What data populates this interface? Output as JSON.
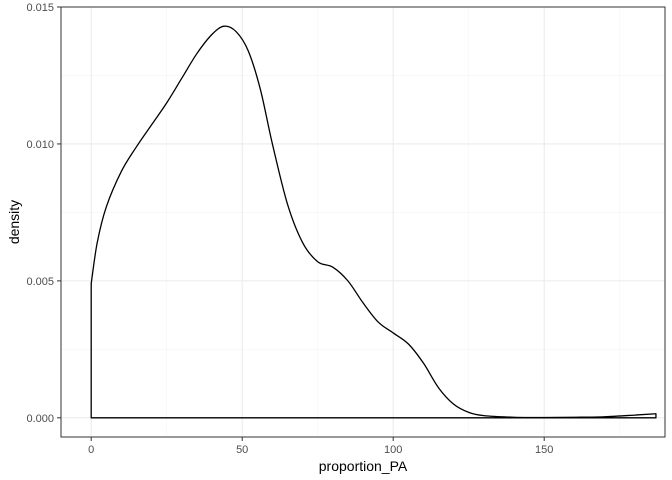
{
  "chart_data": {
    "type": "area",
    "xlabel": "proportion_PA",
    "ylabel": "density",
    "xlim": [
      -10,
      190
    ],
    "ylim": [
      -0.0007,
      0.015
    ],
    "x_ticks": [
      0,
      50,
      100,
      150
    ],
    "y_ticks": [
      0.0,
      0.005,
      0.01,
      0.015
    ],
    "x_tick_labels": [
      "0",
      "50",
      "100",
      "150"
    ],
    "y_tick_labels": [
      "0.000",
      "0.005",
      "0.010",
      "0.015"
    ],
    "grid": true,
    "legend": "none",
    "series": [
      {
        "x": [
          0,
          2,
          5,
          10,
          15,
          20,
          25,
          30,
          35,
          40,
          44,
          48,
          52,
          56,
          60,
          65,
          70,
          75,
          80,
          85,
          90,
          95,
          100,
          105,
          110,
          115,
          120,
          125,
          130,
          140,
          150,
          160,
          170,
          180,
          187
        ],
        "y": [
          0.0049,
          0.0064,
          0.0077,
          0.009,
          0.0099,
          0.0107,
          0.0115,
          0.0124,
          0.0133,
          0.014,
          0.0143,
          0.0141,
          0.0134,
          0.012,
          0.01,
          0.0078,
          0.0064,
          0.0057,
          0.0055,
          0.005,
          0.0042,
          0.0035,
          0.0031,
          0.0027,
          0.002,
          0.0011,
          0.0005,
          0.0002,
          8e-05,
          2e-05,
          1e-05,
          2e-05,
          4e-05,
          0.0001,
          0.00015
        ]
      }
    ],
    "colors": {
      "background": "#ffffff",
      "panel_border": "#333333",
      "grid_major": "#ebebeb",
      "grid_minor": "#f5f5f5",
      "line": "#000000",
      "tick_text": "#4d4d4d",
      "axis_title": "#000000"
    }
  }
}
